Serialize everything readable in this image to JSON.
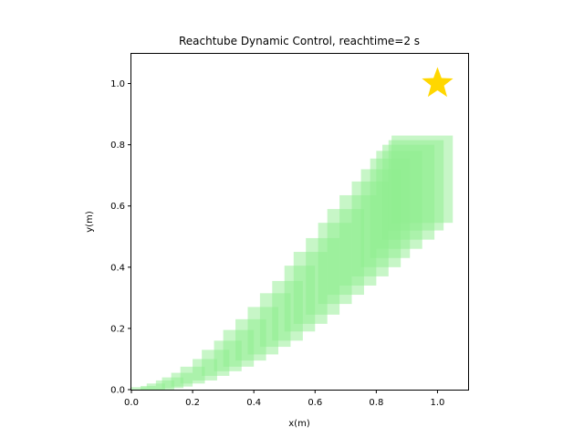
{
  "chart_data": {
    "type": "scatter",
    "title": "Reachtube Dynamic Control, reachtime=2 s",
    "xlabel": "x(m)",
    "ylabel": "y(m)",
    "xlim": [
      0,
      1.1
    ],
    "ylim": [
      0,
      1.1
    ],
    "xticks": [
      "0.0",
      "0.2",
      "0.4",
      "0.6",
      "0.8",
      "1.0"
    ],
    "yticks": [
      "0.0",
      "0.2",
      "0.4",
      "0.6",
      "0.8",
      "1.0"
    ],
    "grid": false,
    "tube_color": "#90ee90",
    "goal": {
      "x": 1.0,
      "y": 1.0,
      "marker": "star",
      "color": "#ffd700"
    },
    "series": [
      {
        "rects": [
          {
            "x0": 0.0,
            "x1": 0.05,
            "y0": 0.0,
            "y1": 0.008
          },
          {
            "x0": 0.03,
            "x1": 0.08,
            "y0": 0.0,
            "y1": 0.012
          },
          {
            "x0": 0.05,
            "x1": 0.11,
            "y0": 0.0,
            "y1": 0.02
          },
          {
            "x0": 0.08,
            "x1": 0.14,
            "y0": 0.0,
            "y1": 0.03
          },
          {
            "x0": 0.1,
            "x1": 0.17,
            "y0": 0.005,
            "y1": 0.04
          },
          {
            "x0": 0.13,
            "x1": 0.2,
            "y0": 0.01,
            "y1": 0.055
          },
          {
            "x0": 0.16,
            "x1": 0.24,
            "y0": 0.02,
            "y1": 0.075
          },
          {
            "x0": 0.2,
            "x1": 0.28,
            "y0": 0.03,
            "y1": 0.1
          },
          {
            "x0": 0.23,
            "x1": 0.32,
            "y0": 0.045,
            "y1": 0.13
          },
          {
            "x0": 0.27,
            "x1": 0.36,
            "y0": 0.06,
            "y1": 0.16
          },
          {
            "x0": 0.3,
            "x1": 0.4,
            "y0": 0.075,
            "y1": 0.195
          },
          {
            "x0": 0.34,
            "x1": 0.44,
            "y0": 0.095,
            "y1": 0.23
          },
          {
            "x0": 0.38,
            "x1": 0.48,
            "y0": 0.115,
            "y1": 0.27
          },
          {
            "x0": 0.42,
            "x1": 0.52,
            "y0": 0.14,
            "y1": 0.315
          },
          {
            "x0": 0.46,
            "x1": 0.56,
            "y0": 0.16,
            "y1": 0.355
          },
          {
            "x0": 0.5,
            "x1": 0.6,
            "y0": 0.19,
            "y1": 0.405
          },
          {
            "x0": 0.53,
            "x1": 0.64,
            "y0": 0.215,
            "y1": 0.45
          },
          {
            "x0": 0.57,
            "x1": 0.68,
            "y0": 0.245,
            "y1": 0.495
          },
          {
            "x0": 0.61,
            "x1": 0.72,
            "y0": 0.28,
            "y1": 0.545
          },
          {
            "x0": 0.64,
            "x1": 0.76,
            "y0": 0.31,
            "y1": 0.59
          },
          {
            "x0": 0.68,
            "x1": 0.8,
            "y0": 0.34,
            "y1": 0.635
          },
          {
            "x0": 0.72,
            "x1": 0.84,
            "y0": 0.37,
            "y1": 0.68
          },
          {
            "x0": 0.75,
            "x1": 0.88,
            "y0": 0.4,
            "y1": 0.72
          },
          {
            "x0": 0.78,
            "x1": 0.91,
            "y0": 0.43,
            "y1": 0.755
          },
          {
            "x0": 0.8,
            "x1": 0.95,
            "y0": 0.46,
            "y1": 0.78
          },
          {
            "x0": 0.82,
            "x1": 0.99,
            "y0": 0.49,
            "y1": 0.8
          },
          {
            "x0": 0.84,
            "x1": 1.02,
            "y0": 0.52,
            "y1": 0.815
          },
          {
            "x0": 0.85,
            "x1": 1.05,
            "y0": 0.545,
            "y1": 0.83
          }
        ]
      }
    ]
  }
}
